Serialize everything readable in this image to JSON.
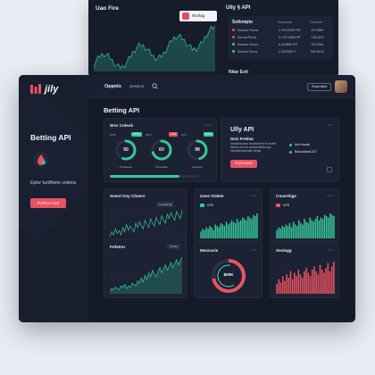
{
  "back_window": {
    "title": "Uao Fire",
    "button_label": "Worlag API",
    "right_title": "Ully § API",
    "panel": {
      "title": "Sofempto",
      "col1": "Suespoos",
      "col2": "Goerave",
      "rows": [
        {
          "label": "Sueame Reons",
          "v1": "4.293 99983 RR",
          "v2": "423 9885",
          "color": "#e34a5a"
        },
        {
          "label": "Suenla Reons",
          "v1": "2.4 4R 6888 RR",
          "v2": "+28.44ES",
          "color": "#e34a5a"
        },
        {
          "label": "Rearbar Reons",
          "v1": "6.48 8888 RR",
          "v2": "+59.5384",
          "color": "#35c99a"
        },
        {
          "label": "Sleame Reons",
          "v1": "2.283 88873",
          "v2": "800 88.82",
          "color": "#35c99a"
        }
      ]
    },
    "footer_label": "Nitar Evit"
  },
  "brand": {
    "name": "jily"
  },
  "sidebar": {
    "heading": "Betting API",
    "description": "Eplor turdhiete vodora",
    "button_label": "PURCHASE"
  },
  "topbar": {
    "items": [
      "Oppets",
      "Session"
    ],
    "button_label": "Suscrated"
  },
  "page": {
    "title": "Betting API"
  },
  "gauges_card": {
    "title": "Wsv Coleok",
    "gauges": [
      {
        "label": "AATP",
        "badge": "15:3%",
        "badge_color": "#35c99a",
        "value": "50",
        "name": "Purcleuest",
        "fraction": 0.55,
        "color": "#35c99a"
      },
      {
        "label": "DATT",
        "badge": "+5%",
        "badge_color": "#ea5262",
        "value": "6V",
        "name": "Prouncitis",
        "fraction": 0.7,
        "color": "#35c99a"
      },
      {
        "label": "ATIS",
        "badge": "4A1%",
        "badge_color": "#35c99a",
        "value": "99",
        "name": "Fetoosin",
        "fraction": 0.45,
        "color": "#35c99a"
      }
    ],
    "progress": 0.78
  },
  "api_card": {
    "title": "Ully API",
    "subtitle": "Dotz Prethar",
    "description": "Deaboreserse terdotelnete fe brethe defoke ibe ser erersterterthoogo, earsteteraotimate ftolgai",
    "bullets": [
      "Ariv rissair",
      "Bacoclahat 227"
    ],
    "button_label": "PURCHASE"
  },
  "cards": {
    "smart": {
      "title": "Smert Dsy Chsers",
      "tag": "Lortuoar Ajl"
    },
    "users": {
      "title": "Uses Onlete",
      "legend": "UPE"
    },
    "counting": {
      "title": "Couortiigs",
      "legend": "UPS"
    },
    "perfor": {
      "title": "Pefatrer",
      "tag": "Curves"
    },
    "meanorie": {
      "title": "Mesnorie",
      "center": "$00K",
      "fraction": 0.72
    },
    "seclegg": {
      "title": "Seclegg"
    }
  },
  "chart_data": [
    {
      "type": "line",
      "title": "Smert Dsy Chsers",
      "series": [
        {
          "values": [
            8,
            11,
            9,
            13,
            10,
            12,
            9,
            14,
            11,
            16,
            12,
            15,
            13,
            11,
            17,
            14,
            18,
            15,
            13,
            19,
            16,
            14,
            20,
            17,
            15,
            21,
            18,
            16,
            22,
            19,
            17,
            23,
            20,
            24,
            21,
            19,
            25,
            22,
            20,
            26
          ]
        }
      ]
    },
    {
      "type": "bar",
      "title": "Uses Onlete",
      "series": [
        {
          "values": [
            5,
            7,
            6,
            8,
            7,
            9,
            8,
            6,
            10,
            9,
            8,
            11,
            10,
            9,
            12,
            10,
            11,
            13,
            12,
            11,
            14,
            12,
            13,
            15,
            14,
            13,
            16,
            15,
            14,
            17,
            16,
            18
          ]
        }
      ]
    },
    {
      "type": "bar",
      "title": "Couortiigs",
      "series": [
        {
          "values": [
            6,
            8,
            7,
            9,
            8,
            10,
            9,
            11,
            8,
            12,
            10,
            9,
            13,
            11,
            10,
            14,
            12,
            11,
            15,
            13,
            12,
            14,
            16,
            13,
            15,
            14,
            17,
            16,
            15,
            18,
            17,
            16
          ]
        }
      ]
    },
    {
      "type": "area",
      "title": "Pefatrer",
      "series": [
        {
          "values": [
            4,
            6,
            5,
            7,
            6,
            5,
            8,
            7,
            9,
            6,
            8,
            7,
            10,
            9,
            8,
            12,
            10,
            14,
            11,
            16,
            13,
            18,
            15,
            20,
            17,
            15,
            19,
            22,
            18,
            21,
            24,
            20,
            23,
            26,
            22,
            25,
            28,
            24,
            27,
            30
          ]
        }
      ]
    },
    {
      "type": "bar",
      "title": "Seclegg",
      "series": [
        {
          "values": [
            6,
            9,
            7,
            11,
            8,
            12,
            10,
            14,
            9,
            13,
            11,
            15,
            12,
            10,
            14,
            16,
            13,
            11,
            15,
            17,
            14,
            12,
            18,
            15,
            13,
            16,
            19,
            14,
            17,
            20
          ]
        }
      ]
    }
  ]
}
